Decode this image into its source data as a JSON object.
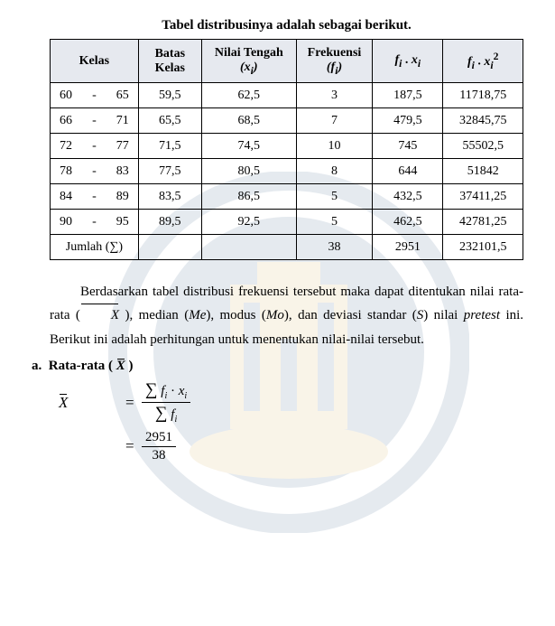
{
  "title": "Tabel distribusinya adalah sebagai berikut.",
  "table": {
    "headers": {
      "kelas": "Kelas",
      "batas": "Batas Kelas",
      "tengah_pre": "Nilai Tengah",
      "tengah_sym": "(xᵢ)",
      "freq_pre": "Frekuensi",
      "freq_sym": "(fᵢ)",
      "fx": "fᵢ . xᵢ",
      "fx2": "fᵢ . xᵢ²"
    },
    "rows": [
      {
        "k1": "60",
        "dash": "-",
        "k2": "65",
        "batas": "59,5",
        "tengah": "62,5",
        "f": "3",
        "fx": "187,5",
        "fx2": "11718,75"
      },
      {
        "k1": "66",
        "dash": "-",
        "k2": "71",
        "batas": "65,5",
        "tengah": "68,5",
        "f": "7",
        "fx": "479,5",
        "fx2": "32845,75"
      },
      {
        "k1": "72",
        "dash": "-",
        "k2": "77",
        "batas": "71,5",
        "tengah": "74,5",
        "f": "10",
        "fx": "745",
        "fx2": "55502,5"
      },
      {
        "k1": "78",
        "dash": "-",
        "k2": "83",
        "batas": "77,5",
        "tengah": "80,5",
        "f": "8",
        "fx": "644",
        "fx2": "51842"
      },
      {
        "k1": "84",
        "dash": "-",
        "k2": "89",
        "batas": "83,5",
        "tengah": "86,5",
        "f": "5",
        "fx": "432,5",
        "fx2": "37411,25"
      },
      {
        "k1": "90",
        "dash": "-",
        "k2": "95",
        "batas": "89,5",
        "tengah": "92,5",
        "f": "5",
        "fx": "462,5",
        "fx2": "42781,25"
      }
    ],
    "total": {
      "label": "Jumlah (∑)",
      "batas": "",
      "tengah": "",
      "f": "38",
      "fx": "2951",
      "fx2": "232101,5"
    }
  },
  "paragraph": {
    "p1a": "Berdasarkan tabel distribusi frekuensi tersebut maka dapat ditentukan nilai rata-rata (",
    "p1b": "), median (",
    "me": "Me",
    "p1c": "), modus (",
    "mo": "Mo",
    "p1d": "), dan deviasi standar (",
    "s": "S",
    "p1e": ") nilai ",
    "pretest": "pretest",
    "p1f": " ini. Berikut ini adalah perhitungan untuk menentukan nilai-nilai tersebut."
  },
  "heading": {
    "label_a": "a.",
    "label_b": "Rata-rata ( ",
    "label_c": " )"
  },
  "formula": {
    "xbar": "X",
    "sum_fx_num": "∑ fᵢ · xᵢ",
    "sum_f_den": "∑ fᵢ",
    "num2": "2951",
    "den2": "38"
  },
  "colors": {
    "header_bg": "#d2d7e1",
    "text": "#000000",
    "bg": "#ffffff",
    "wm_blue": "#0a3a6e",
    "wm_gold": "#c99a2e"
  }
}
